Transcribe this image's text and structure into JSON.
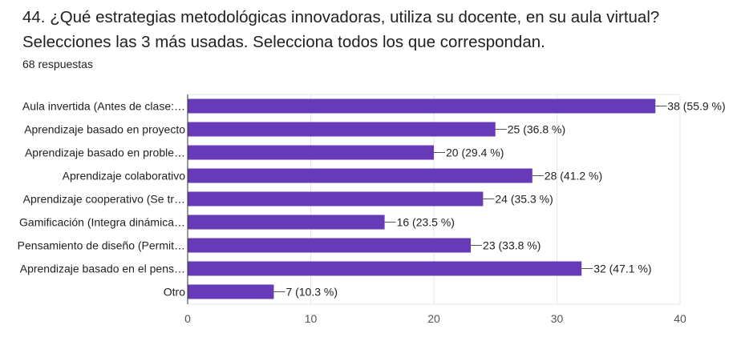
{
  "question": {
    "title": "44. ¿Qué estrategias metodológicas innovadoras, utiliza su docente, en su aula virtual? Selecciones las 3 más usadas.   Selecciona todos los que correspondan.",
    "responses": "68 respuestas"
  },
  "colors": {
    "bar": "#673ab7",
    "grid": "#e6e6e6",
    "axis": "#333333"
  },
  "chart_data": {
    "type": "bar",
    "orientation": "horizontal",
    "title": "44. ¿Qué estrategias metodológicas innovadoras, utiliza su docente, en su aula virtual? Selecciones las 3 más usadas.   Selecciona todos los que correspondan.",
    "categories": [
      "Aula invertida (Antes de clase:…",
      "Aprendizaje basado en proyecto",
      "Aprendizaje basado en proble…",
      "Aprendizaje colaborativo",
      "Aprendizaje cooperativo (Se tr…",
      "Gamificación (Integra dinámica…",
      "Pensamiento de diseño (Permit…",
      "Aprendizaje basado en el pens…",
      "Otro"
    ],
    "values": [
      38,
      25,
      20,
      28,
      24,
      16,
      23,
      32,
      7
    ],
    "value_labels": [
      "38 (55.9 %)",
      "25 (36.8 %)",
      "20 (29.4 %)",
      "28 (41.2 %)",
      "24 (35.3 %)",
      "16 (23.5 %)",
      "23 (33.8 %)",
      "32 (47.1 %)",
      "7 (10.3 %)"
    ],
    "xlim": [
      0,
      40
    ],
    "xticks": [
      "0",
      "10",
      "20",
      "30",
      "40"
    ],
    "xlabel": "",
    "ylabel": "",
    "grid": true
  }
}
